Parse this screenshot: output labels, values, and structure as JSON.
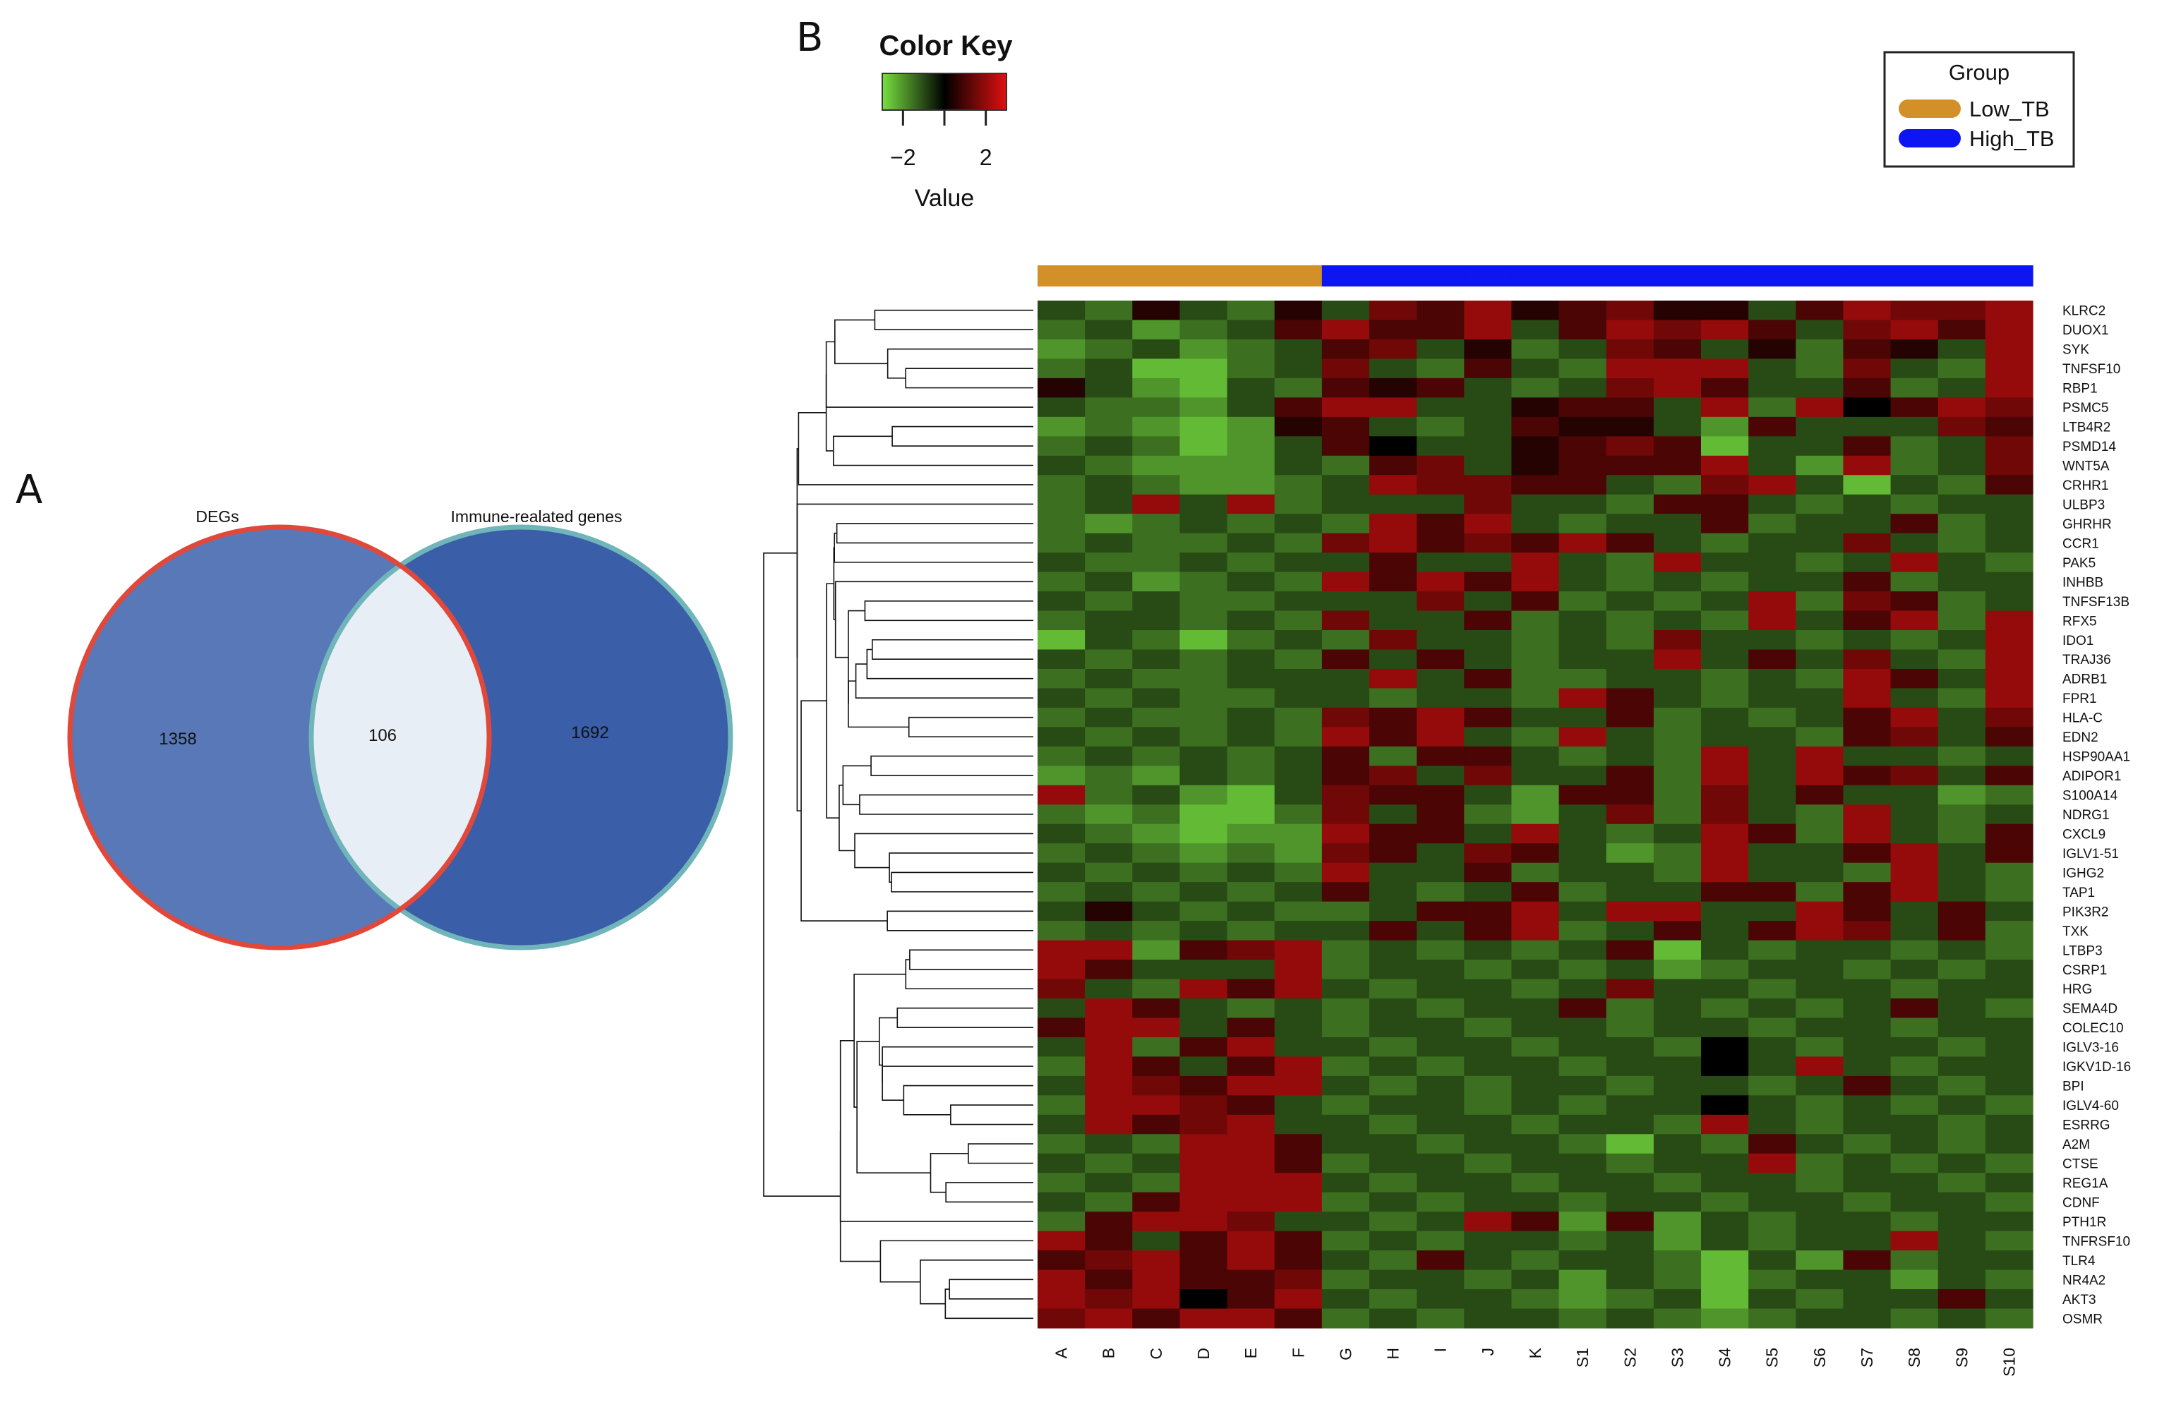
{
  "panels": {
    "a": "A",
    "b": "B"
  },
  "venn": {
    "left_set": "DEGs",
    "right_set": "Immune-realated genes",
    "left_only": "1358",
    "overlap": "106",
    "right_only": "1692",
    "colors": {
      "left_fill": "#5878b8",
      "right_fill": "#3a5ea8",
      "overlap_fill": "#e8eef6",
      "left_stroke": "#e2483a",
      "right_stroke": "#6fb5b9"
    }
  },
  "color_key": {
    "title": "Color Key",
    "ticks": [
      "−2",
      "2"
    ],
    "tick_values": [
      -2,
      2
    ],
    "range": [
      -3,
      3
    ],
    "axis_label": "Value",
    "colors": {
      "low": "#77e040",
      "mid": "#000000",
      "high": "#e01010"
    }
  },
  "legend": {
    "title": "Group",
    "items": [
      {
        "label": "Low_TB",
        "color": "#d38f28"
      },
      {
        "label": "High_TB",
        "color": "#0d15f2"
      }
    ]
  },
  "chart_data": {
    "type": "heatmap",
    "title": "",
    "xlabel": "",
    "ylabel": "",
    "samples": [
      "A",
      "B",
      "C",
      "D",
      "E",
      "F",
      "G",
      "H",
      "I",
      "J",
      "K",
      "S1",
      "S2",
      "S3",
      "S4",
      "S5",
      "S6",
      "S7",
      "S8",
      "S9",
      "S10"
    ],
    "sample_groups": [
      "Low_TB",
      "Low_TB",
      "Low_TB",
      "Low_TB",
      "Low_TB",
      "Low_TB",
      "High_TB",
      "High_TB",
      "High_TB",
      "High_TB",
      "High_TB",
      "High_TB",
      "High_TB",
      "High_TB",
      "High_TB",
      "High_TB",
      "High_TB",
      "High_TB",
      "High_TB",
      "High_TB",
      "High_TB"
    ],
    "genes": [
      "KLRC2",
      "DUOX1",
      "SYK",
      "TNFSF10",
      "RBP1",
      "PSMC5",
      "LTB4R2",
      "PSMD14",
      "WNT5A",
      "CRHR1",
      "ULBP3",
      "GHRHR",
      "CCR1",
      "PAK5",
      "INHBB",
      "TNFSF13B",
      "RFX5",
      "IDO1",
      "TRAJ36",
      "ADRB1",
      "FPR1",
      "HLA-C",
      "EDN2",
      "HSP90AA1",
      "ADIPOR1",
      "S100A14",
      "NDRG1",
      "CXCL9",
      "IGLV1-51",
      "IGHG2",
      "TAP1",
      "PIK3R2",
      "TXK",
      "LTBP3",
      "CSRP1",
      "HRG",
      "SEMA4D",
      "COLEC10",
      "IGLV3-16",
      "IGKV1D-16",
      "BPI",
      "IGLV4-60",
      "ESRRG",
      "A2M",
      "CTSE",
      "REG1A",
      "CDNF",
      "PTH1R",
      "TNFRSF10",
      "TLR4",
      "NR4A2",
      "AKT3",
      "OSMR"
    ],
    "values": [
      [
        -1,
        -1.5,
        0.5,
        -1,
        -1.5,
        0.5,
        -1,
        1.5,
        1,
        2,
        0.5,
        1,
        1.5,
        0.5,
        0.5,
        -1,
        1,
        2,
        1.5,
        1.5,
        2
      ],
      [
        -1.5,
        -1,
        -2,
        -1.5,
        -1,
        1,
        2,
        1,
        1,
        2,
        -1,
        1,
        2,
        1.5,
        2,
        1,
        -1,
        1.5,
        2,
        1,
        2
      ],
      [
        -2,
        -1.5,
        -1,
        -2,
        -1.5,
        -1,
        1,
        1.5,
        -1,
        0.5,
        -1.5,
        -1,
        1.5,
        1,
        -1,
        0.5,
        -1.5,
        1,
        0.5,
        -1,
        2
      ],
      [
        -1.5,
        -1,
        -2.5,
        -2.5,
        -1.5,
        -1,
        1.5,
        -1,
        -1.5,
        1,
        -1,
        -1.5,
        2,
        2,
        2,
        -1,
        -1.5,
        1.5,
        -1,
        -1.5,
        2
      ],
      [
        0.5,
        -1,
        -2,
        -2.5,
        -1,
        -1.5,
        1,
        0.5,
        1,
        -1,
        -1.5,
        -1,
        1.5,
        2,
        1,
        -1,
        -1,
        1,
        -1.5,
        -1,
        2
      ],
      [
        -1,
        -1.5,
        -1.5,
        -2,
        -1,
        1,
        2,
        2,
        -1,
        -1,
        0.5,
        1,
        1,
        -1,
        2,
        -1.5,
        2,
        0,
        1,
        2,
        1.5
      ],
      [
        -2,
        -1.5,
        -2,
        -2.5,
        -2,
        0.5,
        1,
        -1,
        -1.5,
        -1,
        1,
        0.5,
        0.5,
        -1,
        -2,
        1,
        -1,
        -1,
        -1,
        1.5,
        1
      ],
      [
        -1.5,
        -1,
        -1.5,
        -2.5,
        -2,
        -1,
        1,
        0,
        -1,
        -1,
        0.5,
        1,
        1.5,
        1,
        -2.5,
        -1,
        -1,
        1,
        -1.5,
        -1,
        1.5
      ],
      [
        -1,
        -1.5,
        -2,
        -2,
        -2,
        -1,
        -1.5,
        1,
        1.5,
        -1,
        0.5,
        1,
        1,
        1,
        2,
        -1,
        -2,
        2,
        -1.5,
        -1,
        1.5
      ],
      [
        -1.5,
        -1,
        -1.5,
        -2,
        -2,
        -1.5,
        -1,
        2,
        1.5,
        1.5,
        1,
        1,
        -1,
        -1.5,
        1.5,
        2,
        -1,
        -2.5,
        -1,
        -1.5,
        1
      ],
      [
        -1.5,
        -1,
        2,
        -1,
        2,
        -1.5,
        -1,
        -1,
        -1,
        1.5,
        -1,
        -1,
        -1.5,
        1,
        1,
        -1,
        -1.5,
        -1,
        -1.5,
        -1,
        -1
      ],
      [
        -1.5,
        -2,
        -1.5,
        -1,
        -1.5,
        -1,
        -1.5,
        2,
        1,
        2,
        -1,
        -1.5,
        -1,
        -1,
        1,
        -1.5,
        -1,
        -1,
        1,
        -1.5,
        -1
      ],
      [
        -1.5,
        -1,
        -1.5,
        -1.5,
        -1,
        -1.5,
        1.5,
        2,
        1,
        1.5,
        1,
        2,
        1,
        -1,
        -1.5,
        -1,
        -1,
        1.5,
        -1,
        -1.5,
        -1
      ],
      [
        -1,
        -1.5,
        -1.5,
        -1,
        -1.5,
        -1,
        -1,
        1,
        -1,
        -1,
        2,
        -1,
        -1.5,
        2,
        -1,
        -1,
        -1.5,
        -1,
        2,
        -1,
        -1.5
      ],
      [
        -1.5,
        -1,
        -2,
        -1.5,
        -1,
        -1.5,
        2,
        1,
        2,
        1,
        2,
        -1,
        -1.5,
        -1,
        -1.5,
        -1,
        -1,
        1,
        -1.5,
        -1,
        -1
      ],
      [
        -1,
        -1.5,
        -1,
        -1.5,
        -1.5,
        -1,
        -1,
        -1,
        1.5,
        -1,
        1,
        -1.5,
        -1,
        -1.5,
        -1,
        2,
        -1.5,
        1.5,
        1,
        -1.5,
        -1
      ],
      [
        -1.5,
        -1,
        -1,
        -1.5,
        -1,
        -1.5,
        1.5,
        -1,
        -1,
        1,
        -1.5,
        -1,
        -1.5,
        -1,
        -1.5,
        2,
        -1,
        1,
        2,
        -1.5,
        2
      ],
      [
        -2.5,
        -1,
        -1.5,
        -2.5,
        -1.5,
        -1,
        -1.5,
        1.5,
        -1,
        -1,
        -1.5,
        -1,
        -1.5,
        1.5,
        -1,
        -1,
        -1.5,
        -1,
        -1.5,
        -1,
        2
      ],
      [
        -1,
        -1.5,
        -1,
        -1.5,
        -1,
        -1.5,
        1,
        -1,
        1,
        -1,
        -1.5,
        -1,
        -1,
        2,
        -1,
        1,
        -1,
        1.5,
        -1,
        -1.5,
        2
      ],
      [
        -1.5,
        -1,
        -1.5,
        -1.5,
        -1,
        -1,
        -1,
        2,
        -1,
        1,
        -1.5,
        -1.5,
        -1,
        -1,
        -1.5,
        -1,
        -1.5,
        2,
        1,
        -1,
        2
      ],
      [
        -1,
        -1.5,
        -1,
        -1.5,
        -1.5,
        -1,
        -1,
        -1.5,
        -1,
        -1,
        -1.5,
        2,
        1,
        -1,
        -1.5,
        -1,
        -1,
        2,
        -1,
        -1.5,
        2
      ],
      [
        -1.5,
        -1,
        -1.5,
        -1.5,
        -1,
        -1.5,
        1.5,
        1,
        2,
        1,
        -1,
        -1,
        1,
        -1.5,
        -1,
        -1.5,
        -1,
        1,
        2,
        -1,
        1.5
      ],
      [
        -1,
        -1.5,
        -1,
        -1.5,
        -1,
        -1.5,
        2,
        1,
        2,
        -1,
        -1.5,
        2,
        -1,
        -1.5,
        -1,
        -1,
        -1.5,
        1,
        1.5,
        -1,
        1
      ],
      [
        -1.5,
        -1,
        -1.5,
        -1,
        -1.5,
        -1,
        1,
        -1.5,
        1,
        1,
        -1,
        -1.5,
        -1,
        -1.5,
        2,
        -1,
        2,
        -1,
        -1,
        -1.5,
        -1
      ],
      [
        -2,
        -1.5,
        -2,
        -1,
        -1.5,
        -1,
        1,
        1.5,
        -1,
        1.5,
        -1,
        -1,
        1,
        -1.5,
        2,
        -1,
        2,
        1,
        1.5,
        -1,
        1
      ],
      [
        2,
        -1.5,
        -1,
        -2,
        -2.5,
        -1,
        1.5,
        1,
        1,
        -1,
        -2,
        1,
        1,
        -1.5,
        1.5,
        -1,
        1,
        -1,
        -1,
        -2,
        -1.5
      ],
      [
        -1.5,
        -2,
        -1.5,
        -2.5,
        -2.5,
        -1.5,
        1.5,
        -1,
        1,
        -1.5,
        -2,
        -1,
        1.5,
        -1.5,
        1.5,
        -1,
        -1.5,
        2,
        -1,
        -1.5,
        -1
      ],
      [
        -1,
        -1.5,
        -2,
        -2.5,
        -2,
        -2,
        2,
        1,
        1,
        -1,
        2,
        -1,
        -1.5,
        -1,
        2,
        1,
        -1.5,
        2,
        -1,
        -1.5,
        1
      ],
      [
        -1.5,
        -1,
        -1.5,
        -2,
        -1.5,
        -2,
        1.5,
        1,
        -1,
        1.5,
        1,
        -1,
        -2,
        -1.5,
        2,
        -1,
        -1,
        1,
        2,
        -1,
        1
      ],
      [
        -1,
        -1.5,
        -1,
        -1.5,
        -1,
        -1.5,
        2,
        -1,
        -1,
        1,
        -1.5,
        -1,
        -1,
        -1.5,
        2,
        -1,
        -1,
        -1.5,
        2,
        -1,
        -1.5
      ],
      [
        -1.5,
        -1,
        -1.5,
        -1,
        -1.5,
        -1,
        1,
        -1,
        -1.5,
        -1,
        1,
        -1.5,
        -1,
        -1,
        1,
        1,
        -1.5,
        1,
        2,
        -1,
        -1.5
      ],
      [
        -1,
        0.5,
        -1,
        -1.5,
        -1,
        -1.5,
        -1.5,
        -1,
        1,
        1,
        2,
        -1,
        2,
        2,
        -1,
        -1,
        2,
        1,
        -1,
        1,
        -1
      ],
      [
        -1.5,
        -1,
        -1.5,
        -1,
        -1.5,
        -1,
        -1,
        1,
        -1,
        1,
        2,
        -1.5,
        -1,
        1,
        -1,
        1,
        2,
        1.5,
        -1,
        1,
        -1.5
      ],
      [
        2,
        2,
        -2,
        1,
        1.5,
        2,
        -1.5,
        -1,
        -1.5,
        -1,
        -1.5,
        -1,
        1,
        -2.5,
        -1,
        -1.5,
        -1,
        -1,
        -1.5,
        -1,
        -1.5
      ],
      [
        2,
        1,
        -1,
        -1,
        -1,
        2,
        -1.5,
        -1,
        -1,
        -1.5,
        -1,
        -1.5,
        -1,
        -2,
        -1.5,
        -1,
        -1,
        -1.5,
        -1,
        -1.5,
        -1
      ],
      [
        1.5,
        -1,
        -1.5,
        2,
        1,
        2,
        -1,
        -1.5,
        -1,
        -1,
        -1.5,
        -1,
        1.5,
        -1,
        -1,
        -1.5,
        -1,
        -1,
        -1.5,
        -1,
        -1
      ],
      [
        -1,
        2,
        1,
        -1,
        -1.5,
        -1,
        -1.5,
        -1,
        -1.5,
        -1,
        -1,
        1,
        -1.5,
        -1,
        -1.5,
        -1,
        -1.5,
        -1,
        1,
        -1,
        -1.5
      ],
      [
        1,
        2,
        2,
        -1,
        1,
        -1,
        -1.5,
        -1,
        -1,
        -1.5,
        -1,
        -1,
        -1.5,
        -1,
        -1,
        -1.5,
        -1,
        -1,
        -1.5,
        -1,
        -1
      ],
      [
        -1,
        2,
        -1.5,
        1,
        2,
        -1,
        -1,
        -1.5,
        -1,
        -1,
        -1.5,
        -1,
        -1,
        -1.5,
        0,
        -1,
        -1.5,
        -1,
        -1,
        -1.5,
        -1
      ],
      [
        -1.5,
        2,
        1,
        -1,
        1,
        2,
        -1.5,
        -1,
        -1.5,
        -1,
        -1,
        -1.5,
        -1,
        -1,
        0,
        -1,
        2,
        -1,
        -1.5,
        -1,
        -1
      ],
      [
        -1,
        2,
        1.5,
        1,
        2,
        2,
        -1,
        -1.5,
        -1,
        -1.5,
        -1,
        -1,
        -1.5,
        -1,
        -1,
        -1.5,
        -1,
        1,
        -1,
        -1.5,
        -1
      ],
      [
        -1.5,
        2,
        2,
        1.5,
        1,
        -1,
        -1.5,
        -1,
        -1,
        -1.5,
        -1,
        -1.5,
        -1,
        -1,
        0,
        -1,
        -1.5,
        -1,
        -1.5,
        -1,
        -1.5
      ],
      [
        -1,
        2,
        1,
        1.5,
        2,
        -1,
        -1,
        -1.5,
        -1,
        -1,
        -1.5,
        -1,
        -1,
        -1.5,
        2,
        -1,
        -1.5,
        -1,
        -1,
        -1.5,
        -1
      ],
      [
        -1.5,
        -1,
        -1.5,
        2,
        2,
        1,
        -1,
        -1,
        -1.5,
        -1,
        -1,
        -1.5,
        -2.5,
        -1,
        -1.5,
        1,
        -1,
        -1.5,
        -1,
        -1.5,
        -1
      ],
      [
        -1,
        -1.5,
        -1,
        2,
        2,
        1,
        -1.5,
        -1,
        -1,
        -1.5,
        -1,
        -1,
        -1.5,
        -1,
        -1,
        2,
        -1.5,
        -1,
        -1.5,
        -1,
        -1.5
      ],
      [
        -1.5,
        -1,
        -1.5,
        2,
        2,
        2,
        -1,
        -1.5,
        -1,
        -1,
        -1.5,
        -1,
        -1,
        -1.5,
        -1,
        -1,
        -1.5,
        -1,
        -1,
        -1.5,
        -1
      ],
      [
        -1,
        -1.5,
        1,
        2,
        2,
        2,
        -1.5,
        -1,
        -1.5,
        -1,
        -1,
        -1.5,
        -1,
        -1,
        -1.5,
        -1,
        -1,
        -1.5,
        -1,
        -1,
        -1.5
      ],
      [
        -1.5,
        1,
        2,
        2,
        1.5,
        -1,
        -1,
        -1.5,
        -1,
        2,
        1,
        -2,
        1,
        -2,
        -1,
        -1.5,
        -1,
        -1,
        -1.5,
        -1,
        -1
      ],
      [
        2,
        1,
        -1,
        1,
        2,
        1,
        -1.5,
        -1,
        -1.5,
        -1,
        -1,
        -1.5,
        -1,
        -2,
        -1,
        -1.5,
        -1,
        -1,
        2,
        -1,
        -1.5
      ],
      [
        1,
        1.5,
        2,
        1,
        2,
        1,
        -1,
        -1.5,
        1,
        -1,
        -1.5,
        -1,
        -1,
        -1.5,
        -2.5,
        -1,
        -2,
        1,
        -1.5,
        -1,
        -1
      ],
      [
        2,
        1,
        2,
        1,
        1,
        1.5,
        -1.5,
        -1,
        -1,
        -1.5,
        -1,
        -2,
        -1,
        -1.5,
        -2.5,
        -1.5,
        -1,
        -1,
        -2,
        -1,
        -1.5
      ],
      [
        2,
        1.5,
        2,
        0,
        1,
        2,
        -1,
        -1.5,
        -1,
        -1,
        -1.5,
        -2,
        -1.5,
        -1,
        -2.5,
        -1,
        -1.5,
        -1,
        -1,
        1,
        -1
      ],
      [
        1.5,
        2,
        1,
        2,
        2,
        1,
        -1.5,
        -1,
        -1.5,
        -1,
        -1,
        -1.5,
        -1,
        -1.5,
        -2,
        -1.5,
        -1,
        -1,
        -1.5,
        -1,
        -1.5
      ]
    ],
    "value_range": [
      -3,
      3
    ]
  }
}
